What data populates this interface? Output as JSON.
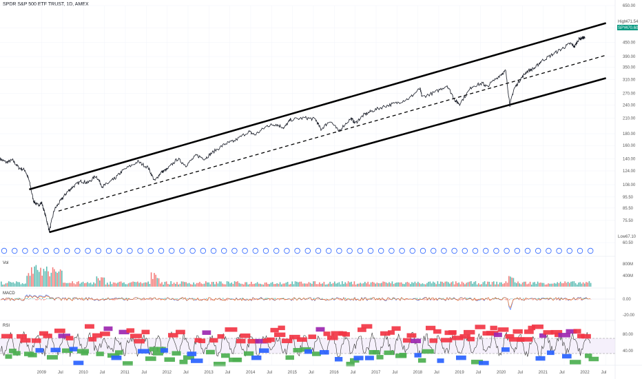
{
  "header": {
    "title": "SPDR S&P 500 ETF TRUST, 1D, AMEX"
  },
  "price_tags": {
    "high_label": "High",
    "high_value": "471.54",
    "ticker": "SPY",
    "last_value": "470.60",
    "low_label": "Low",
    "low_value": "67.10"
  },
  "panes": {
    "volume_label": "Vol",
    "macd_label": "MACD",
    "osc_label": "RSI"
  },
  "colors": {
    "price": "#131722",
    "channel": "#000000",
    "up": "#26a69a",
    "down": "#ef5350",
    "bull_tag": "#4caf50",
    "bear_tag": "#f23645",
    "purple_tag": "#9c27b0",
    "blue_tag": "#2962ff",
    "event_circle": "#2962ff",
    "ticker_tag": "#089981"
  },
  "chart_data": {
    "type": "line",
    "title": "SPDR S&P 500 ETF TRUST, 1D, AMEX",
    "scale": "log",
    "ylim": [
      60.5,
      650
    ],
    "y_ticks": [
      "650.00",
      "520.00",
      "450.00",
      "390.00",
      "350.00",
      "310.00",
      "270.00",
      "240.00",
      "210.00",
      "180.00",
      "160.00",
      "140.00",
      "124.00",
      "108.00",
      "95.50",
      "85.50",
      "75.50",
      "60.50"
    ],
    "x_ticks": [
      "2009",
      "Jul",
      "2010",
      "Jul",
      "2011",
      "Jul",
      "2012",
      "Jul",
      "2013",
      "Jul",
      "2014",
      "Jul",
      "2015",
      "Jul",
      "2016",
      "Jul",
      "2017",
      "Jul",
      "2018",
      "Jul",
      "2019",
      "Jul",
      "2020",
      "Jul",
      "2021",
      "Jul",
      "2022",
      "Jul"
    ],
    "series": [
      {
        "points": [
          [
            2008.0,
            140
          ],
          [
            2008.15,
            135
          ],
          [
            2008.3,
            138
          ],
          [
            2008.45,
            128
          ],
          [
            2008.6,
            125
          ],
          [
            2008.7,
            112
          ],
          [
            2008.8,
            92
          ],
          [
            2008.9,
            88
          ],
          [
            2009.0,
            90
          ],
          [
            2009.1,
            78
          ],
          [
            2009.18,
            68
          ],
          [
            2009.3,
            84
          ],
          [
            2009.45,
            92
          ],
          [
            2009.6,
            100
          ],
          [
            2009.75,
            106
          ],
          [
            2009.95,
            112
          ],
          [
            2010.1,
            110
          ],
          [
            2010.3,
            118
          ],
          [
            2010.45,
            106
          ],
          [
            2010.6,
            110
          ],
          [
            2010.75,
            115
          ],
          [
            2010.95,
            125
          ],
          [
            2011.3,
            136
          ],
          [
            2011.55,
            128
          ],
          [
            2011.7,
            112
          ],
          [
            2011.85,
            122
          ],
          [
            2012.0,
            126
          ],
          [
            2012.25,
            140
          ],
          [
            2012.45,
            131
          ],
          [
            2012.7,
            145
          ],
          [
            2012.9,
            140
          ],
          [
            2013.1,
            150
          ],
          [
            2013.4,
            163
          ],
          [
            2013.6,
            167
          ],
          [
            2013.95,
            184
          ],
          [
            2014.1,
            178
          ],
          [
            2014.4,
            195
          ],
          [
            2014.6,
            198
          ],
          [
            2014.8,
            191
          ],
          [
            2014.95,
            207
          ],
          [
            2015.3,
            211
          ],
          [
            2015.55,
            208
          ],
          [
            2015.68,
            188
          ],
          [
            2015.9,
            205
          ],
          [
            2016.1,
            185
          ],
          [
            2016.4,
            210
          ],
          [
            2016.5,
            200
          ],
          [
            2016.7,
            217
          ],
          [
            2016.9,
            226
          ],
          [
            2017.2,
            237
          ],
          [
            2017.5,
            245
          ],
          [
            2017.8,
            257
          ],
          [
            2018.05,
            283
          ],
          [
            2018.1,
            260
          ],
          [
            2018.4,
            272
          ],
          [
            2018.7,
            292
          ],
          [
            2018.9,
            250
          ],
          [
            2019.0,
            243
          ],
          [
            2019.3,
            290
          ],
          [
            2019.55,
            298
          ],
          [
            2019.65,
            288
          ],
          [
            2019.95,
            322
          ],
          [
            2020.1,
            338
          ],
          [
            2020.2,
            240
          ],
          [
            2020.3,
            282
          ],
          [
            2020.45,
            310
          ],
          [
            2020.6,
            335
          ],
          [
            2020.8,
            348
          ],
          [
            2020.95,
            372
          ],
          [
            2021.2,
            396
          ],
          [
            2021.45,
            422
          ],
          [
            2021.65,
            445
          ],
          [
            2021.75,
            430
          ],
          [
            2021.85,
            465
          ],
          [
            2021.95,
            471
          ],
          [
            2022.0,
            470.6
          ]
        ]
      },
      {
        "name": "",
        "points": []
      }
    ],
    "channel": {
      "upper": [
        [
          2008.7,
          103
        ],
        [
          2022.5,
          545
        ]
      ],
      "mid": [
        [
          2009.4,
          83
        ],
        [
          2022.5,
          395
        ]
      ],
      "lower": [
        [
          2009.18,
          67.1
        ],
        [
          2022.5,
          314
        ]
      ]
    }
  }
}
